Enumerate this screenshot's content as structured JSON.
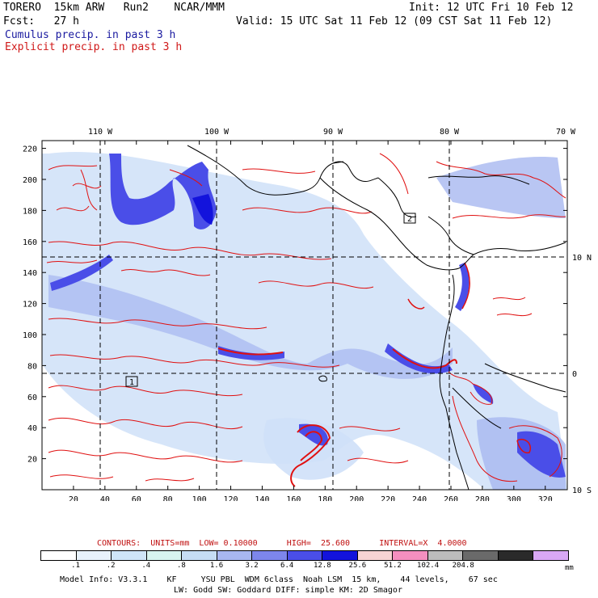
{
  "header": {
    "model_line": "TORERO  15km ARW   Run2    NCAR/MMM",
    "init": "Init: 12 UTC Fri 10 Feb 12",
    "fcst": "Fcst:   27 h",
    "valid": "Valid: 15 UTC Sat 11 Feb 12 (09 CST Sat 11 Feb 12)",
    "field1": "Cumulus precip. in past 3 h",
    "field2": "Explicit precip. in past 3 h"
  },
  "axes": {
    "lon_labels": [
      "110 W",
      "100 W",
      "90 W",
      "80 W",
      "70 W"
    ],
    "lat_labels": [
      "10 N",
      "0",
      "10 S"
    ],
    "x_ticks": [
      "20",
      "40",
      "60",
      "80",
      "100",
      "120",
      "140",
      "160",
      "180",
      "200",
      "220",
      "240",
      "260",
      "280",
      "300",
      "320"
    ],
    "y_ticks": [
      "20",
      "40",
      "60",
      "80",
      "100",
      "120",
      "140",
      "160",
      "180",
      "200",
      "220"
    ],
    "x_values": [
      20,
      40,
      60,
      80,
      100,
      120,
      140,
      160,
      180,
      200,
      220,
      240,
      260,
      280,
      300,
      320
    ],
    "y_values": [
      20,
      40,
      60,
      80,
      100,
      120,
      140,
      160,
      180,
      200,
      220
    ],
    "x_range": [
      0,
      334
    ],
    "y_range": [
      0,
      225
    ],
    "box_labels": [
      "1",
      "2"
    ]
  },
  "contours": {
    "text": "CONTOURS:  UNITS=mm  LOW= 0.10000      HIGH=  25.600      INTERVAL=X  4.0000"
  },
  "legend": {
    "colors": [
      "#ffffff",
      "#e8f2fc",
      "#cfe5f8",
      "#d8f4f0",
      "#c6ddf4",
      "#a8b7f0",
      "#7d86ec",
      "#4a4ee8",
      "#1313dc",
      "#f7d4d4",
      "#f48fbf",
      "#bcbcbc",
      "#6a6a6a",
      "#2a2a2a",
      "#d9a8f5"
    ],
    "ticks": [
      ".1",
      ".2",
      ".4",
      ".8",
      "1.6",
      "3.2",
      "6.4",
      "12.8",
      "25.6",
      "51.2",
      "102.4",
      "204.8"
    ],
    "units": "mm"
  },
  "footer": {
    "line1": "Model Info: V3.3.1    KF     YSU PBL  WDM 6class  Noah LSM  15 km,    44 levels,    67 sec",
    "line2": "LW: Godd SW: Goddard DIFF: simple KM: 2D Smagor"
  }
}
